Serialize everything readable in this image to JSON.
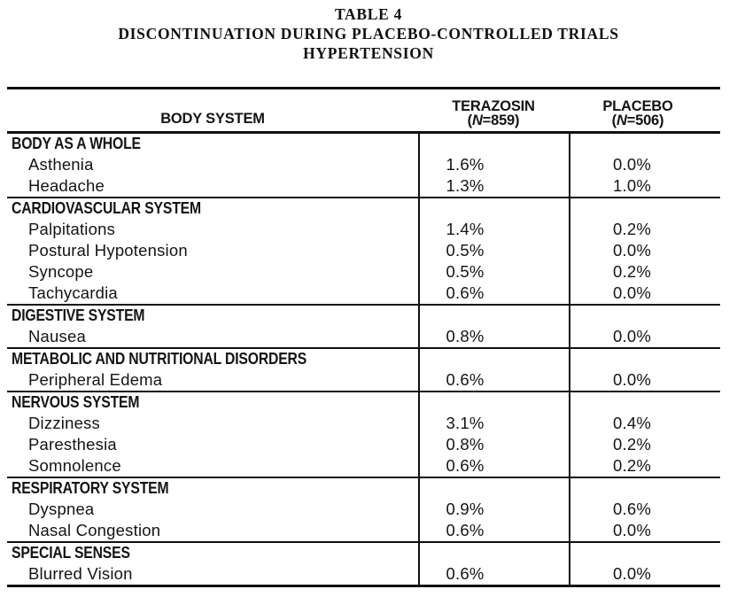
{
  "title": {
    "line1": "TABLE 4",
    "line2": "DISCONTINUATION DURING PLACEBO-CONTROLLED TRIALS",
    "line3": "HYPERTENSION"
  },
  "table": {
    "header": {
      "col1": "BODY SYSTEM",
      "col2": {
        "name": "TERAZOSIN",
        "n_open": "(",
        "n_italic": "N",
        "n_rest": "=859)"
      },
      "col3": {
        "name": "PLACEBO",
        "n_open": "(",
        "n_italic": "N",
        "n_rest": "=506)"
      }
    },
    "sections": [
      {
        "name": "BODY AS A WHOLE",
        "rows": [
          {
            "label": "Asthenia",
            "terazosin": "1.6%",
            "placebo": "0.0%"
          },
          {
            "label": "Headache",
            "terazosin": "1.3%",
            "placebo": "1.0%"
          }
        ]
      },
      {
        "name": "CARDIOVASCULAR SYSTEM",
        "rows": [
          {
            "label": "Palpitations",
            "terazosin": "1.4%",
            "placebo": "0.2%"
          },
          {
            "label": "Postural Hypotension",
            "terazosin": "0.5%",
            "placebo": "0.0%"
          },
          {
            "label": "Syncope",
            "terazosin": "0.5%",
            "placebo": "0.2%"
          },
          {
            "label": "Tachycardia",
            "terazosin": "0.6%",
            "placebo": "0.0%"
          }
        ]
      },
      {
        "name": "DIGESTIVE SYSTEM",
        "rows": [
          {
            "label": "Nausea",
            "terazosin": "0.8%",
            "placebo": "0.0%"
          }
        ]
      },
      {
        "name": "METABOLIC AND NUTRITIONAL DISORDERS",
        "rows": [
          {
            "label": "Peripheral Edema",
            "terazosin": "0.6%",
            "placebo": "0.0%"
          }
        ]
      },
      {
        "name": "NERVOUS SYSTEM",
        "rows": [
          {
            "label": "Dizziness",
            "terazosin": "3.1%",
            "placebo": "0.4%"
          },
          {
            "label": "Paresthesia",
            "terazosin": "0.8%",
            "placebo": "0.2%"
          },
          {
            "label": "Somnolence",
            "terazosin": "0.6%",
            "placebo": "0.2%"
          }
        ]
      },
      {
        "name": "RESPIRATORY SYSTEM",
        "rows": [
          {
            "label": "Dyspnea",
            "terazosin": "0.9%",
            "placebo": "0.6%"
          },
          {
            "label": "Nasal Congestion",
            "terazosin": "0.6%",
            "placebo": "0.0%"
          }
        ]
      },
      {
        "name": "SPECIAL SENSES",
        "rows": [
          {
            "label": "Blurred Vision",
            "terazosin": "0.6%",
            "placebo": "0.0%"
          }
        ]
      }
    ]
  }
}
